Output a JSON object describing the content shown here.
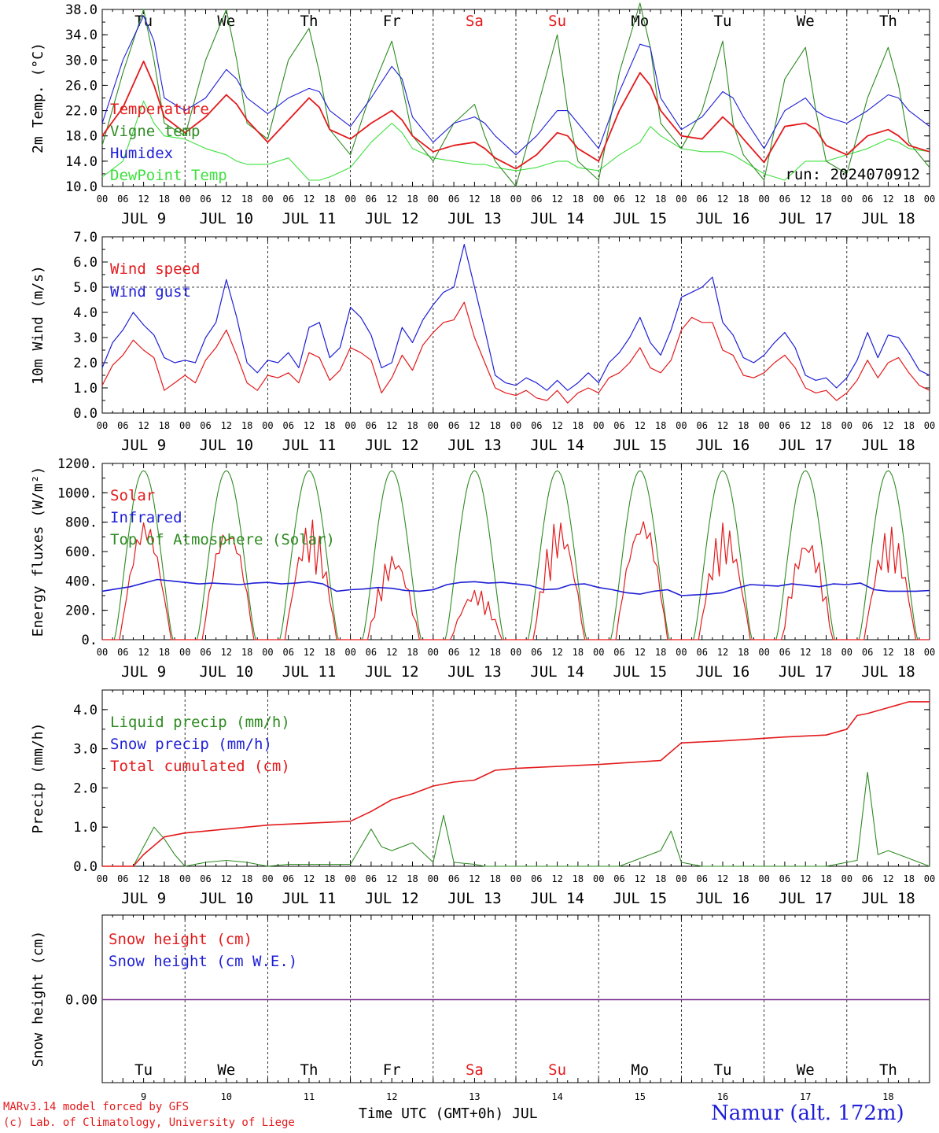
{
  "colors": {
    "temperature": "#e31a1c",
    "vigne": "#2e8b22",
    "humidex": "#1f1fd6",
    "dewpoint": "#3ee03e",
    "red": "#e31a1c",
    "blue": "#1f1fd6",
    "green": "#2e8b22",
    "purple": "#7b2d8e"
  },
  "x_axis": {
    "hour_labels": [
      "00",
      "06",
      "12",
      "18"
    ],
    "last_hour_label": "00",
    "date_labels": [
      "JUL  9",
      "JUL 10",
      "JUL 11",
      "JUL 12",
      "JUL 13",
      "JUL 14",
      "JUL 15",
      "JUL 16",
      "JUL 17",
      "JUL 18"
    ],
    "weekdays": [
      "Tu",
      "We",
      "Th",
      "Fr",
      "Sa",
      "Su",
      "Mo",
      "Tu",
      "We",
      "Th"
    ],
    "weekend_indices": [
      4,
      5
    ],
    "day_numbers": [
      "9",
      "10",
      "11",
      "12",
      "13",
      "14",
      "15",
      "16",
      "17",
      "18"
    ],
    "title": "Time UTC (GMT+0h) JUL"
  },
  "footer": {
    "model": "MARv3.14 model forced by GFS",
    "lab": "(c) Lab. of Climatology, University of Liege",
    "station": "Namur (alt. 172m)"
  },
  "chart_data": [
    {
      "id": "temp",
      "type": "line",
      "ylabel": "2m Temp. (°C)",
      "ylim": [
        10,
        38
      ],
      "yticks": [
        "10.0",
        "14.0",
        "18.0",
        "22.0",
        "26.0",
        "30.0",
        "34.0",
        "38.0"
      ],
      "ytick_values": [
        10,
        14,
        18,
        22,
        26,
        30,
        34,
        38
      ],
      "run_label": "run: 2024070912",
      "x_hours": [
        0,
        6,
        12,
        15,
        18,
        24,
        30,
        36,
        39,
        42,
        48,
        54,
        60,
        63,
        66,
        72,
        78,
        84,
        87,
        90,
        96,
        102,
        108,
        111,
        114,
        120,
        126,
        132,
        135,
        138,
        144,
        150,
        156,
        159,
        162,
        168,
        174,
        180,
        183,
        186,
        192,
        198,
        204,
        207,
        210,
        216,
        222,
        228,
        231,
        234,
        240
      ],
      "series": [
        {
          "name": "Temperature",
          "color_key": "temperature",
          "values": [
            18,
            22.5,
            29.8,
            26,
            21,
            18.5,
            21,
            24.5,
            23,
            20.5,
            17,
            20.5,
            24,
            22.5,
            19,
            17.5,
            20,
            22,
            20.5,
            18,
            15.5,
            16.5,
            17,
            16,
            14.5,
            12.8,
            15,
            18.5,
            18,
            16,
            14,
            22,
            28,
            26,
            22,
            18,
            17.5,
            21,
            19.5,
            17.5,
            13.8,
            19.5,
            20,
            19,
            16.5,
            15,
            18,
            19,
            18,
            16.5,
            15.5
          ]
        },
        {
          "name": "Vigne temp",
          "color_key": "vigne",
          "values": [
            16.5,
            28,
            38,
            30,
            20,
            18,
            30,
            38,
            30,
            20,
            17.5,
            30,
            35,
            28,
            19,
            15,
            25,
            33,
            26,
            18,
            14,
            20,
            23,
            18,
            14,
            10,
            22,
            34,
            22,
            14,
            11,
            28,
            39,
            32,
            20,
            16,
            22,
            33,
            20,
            15,
            11,
            27,
            32,
            22,
            14,
            12,
            24,
            32,
            26,
            17,
            13
          ]
        },
        {
          "name": "Humidex",
          "color_key": "humidex",
          "values": [
            20,
            30,
            37,
            33,
            24,
            22,
            24,
            28.5,
            27,
            24,
            21.5,
            24,
            25.5,
            25,
            22,
            19.5,
            24,
            29,
            27,
            21,
            17,
            20,
            21,
            20,
            18,
            15,
            18,
            22,
            22,
            20,
            16,
            25,
            32.5,
            32,
            24,
            19,
            21,
            25,
            24,
            21,
            16,
            22,
            24,
            22,
            21,
            20,
            22,
            24.5,
            24,
            22,
            19.5
          ]
        },
        {
          "name": "DewPoint Temp",
          "color_key": "dewpoint",
          "values": [
            11.5,
            14,
            23.5,
            20,
            18,
            17.5,
            16,
            15,
            14,
            13.5,
            13.5,
            14.5,
            11,
            11,
            11.5,
            13,
            17,
            20,
            18.5,
            16,
            14.5,
            14,
            13.5,
            13.5,
            13,
            12.5,
            13,
            14,
            14,
            13,
            12.5,
            15,
            17,
            19.5,
            18,
            16,
            15.5,
            15.5,
            15,
            14,
            12,
            11,
            14,
            14,
            14,
            15,
            16,
            17.5,
            17,
            16,
            15.5
          ]
        }
      ]
    },
    {
      "id": "wind",
      "type": "line",
      "ylabel": "10m Wind (m/s)",
      "ylim": [
        0,
        7
      ],
      "yticks": [
        "0.0",
        "1.0",
        "2.0",
        "3.0",
        "4.0",
        "5.0",
        "6.0",
        "7.0"
      ],
      "ytick_values": [
        0,
        1,
        2,
        3,
        4,
        5,
        6,
        7
      ],
      "ref_line": 5,
      "x_hours": [
        0,
        3,
        6,
        9,
        12,
        15,
        18,
        21,
        24,
        27,
        30,
        33,
        36,
        39,
        42,
        45,
        48,
        51,
        54,
        57,
        60,
        63,
        66,
        69,
        72,
        75,
        78,
        81,
        84,
        87,
        90,
        93,
        96,
        99,
        102,
        105,
        108,
        111,
        114,
        117,
        120,
        123,
        126,
        129,
        132,
        135,
        138,
        141,
        144,
        147,
        150,
        153,
        156,
        159,
        162,
        165,
        168,
        171,
        174,
        177,
        180,
        183,
        186,
        189,
        192,
        195,
        198,
        201,
        204,
        207,
        210,
        213,
        216,
        219,
        222,
        225,
        228,
        231,
        234,
        237,
        240
      ],
      "series": [
        {
          "name": "Wind speed",
          "color_key": "red",
          "values": [
            1.1,
            1.9,
            2.3,
            2.9,
            2.5,
            2.2,
            0.9,
            1.2,
            1.5,
            1.2,
            2.1,
            2.6,
            3.3,
            2.3,
            1.2,
            0.9,
            1.5,
            1.4,
            1.6,
            1.2,
            2.4,
            2.2,
            1.3,
            1.7,
            2.6,
            2.4,
            2.1,
            0.8,
            1.4,
            2.3,
            1.7,
            2.7,
            3.2,
            3.6,
            3.7,
            4.4,
            3.0,
            2.0,
            1.0,
            0.8,
            0.7,
            0.9,
            0.6,
            0.5,
            0.9,
            0.4,
            0.8,
            1.0,
            0.8,
            1.4,
            1.6,
            2.0,
            2.6,
            1.8,
            1.6,
            2.1,
            3.3,
            3.8,
            3.6,
            3.6,
            2.5,
            2.3,
            1.5,
            1.4,
            1.6,
            2.0,
            2.3,
            1.8,
            1.0,
            0.8,
            0.9,
            0.5,
            0.8,
            1.3,
            2.1,
            1.4,
            2.0,
            2.2,
            1.6,
            1.1,
            0.9
          ]
        },
        {
          "name": "Wind gust",
          "color_key": "blue",
          "values": [
            1.8,
            2.8,
            3.3,
            4.0,
            3.5,
            3.1,
            2.2,
            2.0,
            2.1,
            2.0,
            3.0,
            3.6,
            5.3,
            3.8,
            2.0,
            1.6,
            2.1,
            2.0,
            2.4,
            1.8,
            3.4,
            3.6,
            2.2,
            2.6,
            4.2,
            3.8,
            3.1,
            1.8,
            2.0,
            3.4,
            2.8,
            3.7,
            4.3,
            4.8,
            5.0,
            6.7,
            5.0,
            3.3,
            1.5,
            1.2,
            1.1,
            1.4,
            1.2,
            0.9,
            1.3,
            0.9,
            1.2,
            1.6,
            1.2,
            2.0,
            2.4,
            3.0,
            3.8,
            2.8,
            2.3,
            3.3,
            4.6,
            4.8,
            5.0,
            5.4,
            3.6,
            3.1,
            2.2,
            2.0,
            2.3,
            2.8,
            3.2,
            2.6,
            1.5,
            1.3,
            1.4,
            1.0,
            1.4,
            2.1,
            3.2,
            2.2,
            3.1,
            3.0,
            2.4,
            1.7,
            1.5
          ]
        }
      ]
    },
    {
      "id": "energy",
      "type": "line",
      "ylabel": "Energy fluxes (W/m²)",
      "ylim": [
        0,
        1200
      ],
      "yticks": [
        "0.",
        "200.",
        "400.",
        "600.",
        "800.",
        "1000.",
        "1200."
      ],
      "ytick_values": [
        0,
        200,
        400,
        600,
        800,
        1000,
        1200
      ],
      "solar_peaks": [
        800,
        800,
        820,
        600,
        350,
        830,
        850,
        800,
        720,
        770
      ],
      "infrared_values": [
        330,
        345,
        360,
        385,
        410,
        400,
        390,
        380,
        385,
        380,
        375,
        385,
        390,
        380,
        385,
        395,
        380,
        330,
        340,
        345,
        355,
        350,
        335,
        330,
        340,
        375,
        390,
        395,
        385,
        390,
        380,
        370,
        340,
        345,
        375,
        380,
        355,
        340,
        320,
        310,
        330,
        340,
        300,
        305,
        310,
        320,
        350,
        375,
        370,
        365,
        380,
        370,
        360,
        380,
        375,
        385,
        340,
        330,
        330,
        330,
        335
      ],
      "toa_peak": 1150,
      "series": [
        {
          "name": "Solar",
          "color_key": "red"
        },
        {
          "name": "Infrared",
          "color_key": "blue"
        },
        {
          "name": "Top of Atmosphere (Solar)",
          "color_key": "green"
        }
      ]
    },
    {
      "id": "precip",
      "type": "line",
      "ylabel": "Precip (mm/h)",
      "ylim": [
        0,
        4.5
      ],
      "yticks": [
        "0.0",
        "1.0",
        "2.0",
        "3.0",
        "4.0"
      ],
      "ytick_values": [
        0,
        1,
        2,
        3,
        4
      ],
      "liquid": {
        "x": [
          0,
          9,
          12,
          15,
          18,
          21,
          24,
          30,
          36,
          42,
          48,
          54,
          66,
          72,
          78,
          81,
          84,
          90,
          96,
          99,
          102,
          108,
          111,
          114,
          120,
          132,
          150,
          162,
          165,
          168,
          171,
          174,
          186,
          198,
          210,
          216,
          219,
          222,
          225,
          228,
          234,
          240
        ],
        "values": [
          0,
          0,
          0.5,
          1.0,
          0.7,
          0.3,
          0,
          0.1,
          0.15,
          0.1,
          0,
          0.05,
          0.05,
          0.05,
          0.95,
          0.5,
          0.4,
          0.6,
          0.1,
          1.3,
          0.1,
          0.05,
          0,
          0,
          0,
          0,
          0,
          0.4,
          0.9,
          0.1,
          0.05,
          0,
          0,
          0,
          0,
          0.1,
          0.15,
          2.4,
          0.3,
          0.4,
          0.2,
          0
        ]
      },
      "cumulated": {
        "x": [
          0,
          9,
          12,
          18,
          24,
          36,
          48,
          60,
          72,
          78,
          84,
          90,
          96,
          102,
          108,
          114,
          120,
          132,
          144,
          162,
          168,
          180,
          198,
          210,
          216,
          219,
          222,
          228,
          234,
          240
        ],
        "values": [
          0,
          0,
          0.3,
          0.75,
          0.85,
          0.95,
          1.05,
          1.1,
          1.15,
          1.4,
          1.7,
          1.85,
          2.05,
          2.15,
          2.2,
          2.45,
          2.5,
          2.55,
          2.6,
          2.7,
          3.15,
          3.2,
          3.3,
          3.35,
          3.5,
          3.85,
          3.9,
          4.05,
          4.2,
          4.2
        ]
      },
      "series": [
        {
          "name": "Liquid precip (mm/h)",
          "color_key": "green"
        },
        {
          "name": "Snow precip (mm/h)",
          "color_key": "blue"
        },
        {
          "name": "Total cumulated (cm)",
          "color_key": "red"
        }
      ]
    },
    {
      "id": "snow",
      "type": "line",
      "ylabel": "Snow height (cm)",
      "yticks": [
        "0.00"
      ],
      "value": 0,
      "series": [
        {
          "name": "Snow height (cm)",
          "color_key": "red"
        },
        {
          "name": "Snow height (cm W.E.)",
          "color_key": "blue"
        }
      ]
    }
  ]
}
